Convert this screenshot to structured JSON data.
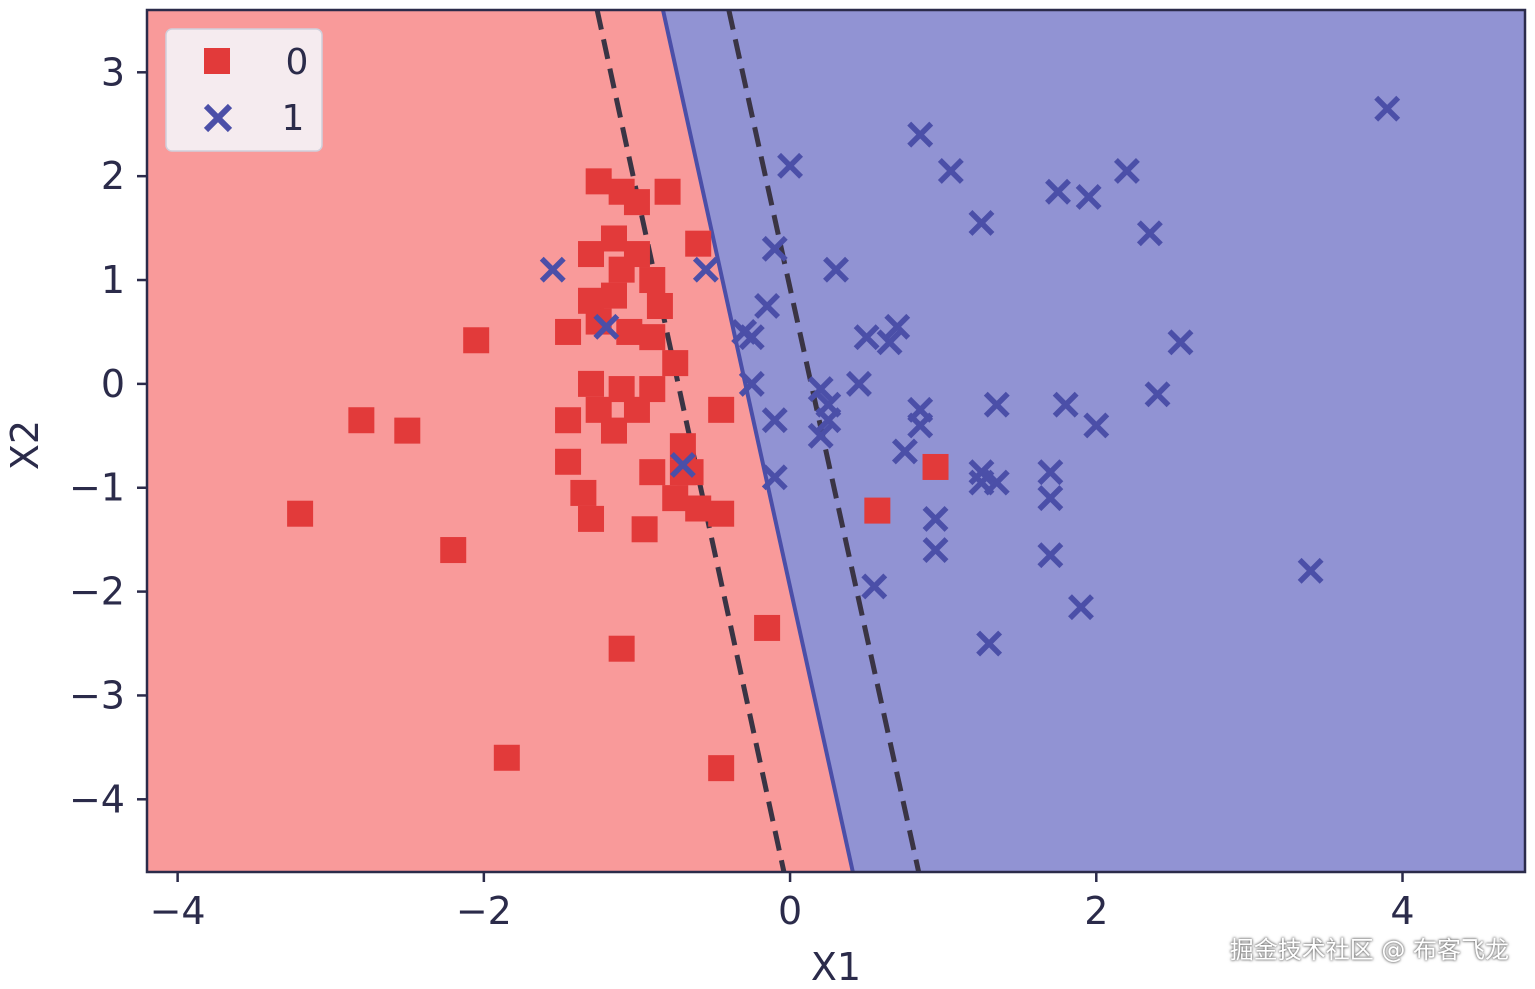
{
  "chart_data": {
    "type": "scatter",
    "title": "",
    "xlabel": "X1",
    "ylabel": "X2",
    "xlim": [
      -4.2,
      4.8
    ],
    "ylim": [
      -4.7,
      3.6
    ],
    "xticks": [
      -4,
      -2,
      0,
      2,
      4
    ],
    "yticks": [
      -4,
      -3,
      -2,
      -1,
      0,
      1,
      2,
      3
    ],
    "xtick_labels": [
      "−4",
      "−2",
      "0",
      "2",
      "4"
    ],
    "ytick_labels": [
      "−4",
      "−3",
      "−2",
      "−1",
      "0",
      "1",
      "2",
      "3"
    ],
    "legend": {
      "placement": "top-left",
      "entries": [
        "0",
        "1"
      ]
    },
    "grid": false,
    "colors": {
      "class0_region": "#f99a9a",
      "class1_region": "#9193d3",
      "class0_marker": "#e23a3a",
      "class1_marker": "#4b4fa8",
      "boundary": "#4b4fa8",
      "margin": "#3a3444",
      "frame": "#2b2b4a"
    },
    "decision_boundary": {
      "points": [
        [
          -0.83,
          3.6
        ],
        [
          0.41,
          -4.7
        ]
      ]
    },
    "margins": [
      {
        "points": [
          [
            -1.26,
            3.6
          ],
          [
            -0.04,
            -4.7
          ]
        ]
      },
      {
        "points": [
          [
            -0.4,
            3.6
          ],
          [
            0.84,
            -4.7
          ]
        ]
      }
    ],
    "series": [
      {
        "name": "0",
        "marker": "square",
        "points": [
          [
            -1.25,
            1.95
          ],
          [
            -1.1,
            1.85
          ],
          [
            -1.0,
            1.75
          ],
          [
            -0.8,
            1.85
          ],
          [
            -0.6,
            1.35
          ],
          [
            -1.3,
            1.25
          ],
          [
            -1.15,
            1.4
          ],
          [
            -1.0,
            1.25
          ],
          [
            -1.1,
            1.1
          ],
          [
            -0.9,
            1.0
          ],
          [
            -1.3,
            0.8
          ],
          [
            -1.15,
            0.85
          ],
          [
            -0.85,
            0.75
          ],
          [
            -1.25,
            0.6
          ],
          [
            -1.05,
            0.5
          ],
          [
            -0.9,
            0.45
          ],
          [
            -1.45,
            0.5
          ],
          [
            -2.05,
            0.42
          ],
          [
            -0.75,
            0.2
          ],
          [
            -1.3,
            0.0
          ],
          [
            -1.1,
            -0.05
          ],
          [
            -0.9,
            -0.05
          ],
          [
            -1.25,
            -0.25
          ],
          [
            -1.0,
            -0.25
          ],
          [
            -0.45,
            -0.25
          ],
          [
            -1.45,
            -0.35
          ],
          [
            -1.15,
            -0.45
          ],
          [
            -2.8,
            -0.35
          ],
          [
            -2.5,
            -0.45
          ],
          [
            -0.7,
            -0.6
          ],
          [
            -1.45,
            -0.75
          ],
          [
            -0.9,
            -0.85
          ],
          [
            -0.7,
            -0.85
          ],
          [
            -0.65,
            -0.85
          ],
          [
            -1.35,
            -1.05
          ],
          [
            -0.75,
            -1.1
          ],
          [
            -0.6,
            -1.2
          ],
          [
            -0.45,
            -1.25
          ],
          [
            -1.3,
            -1.3
          ],
          [
            -0.95,
            -1.4
          ],
          [
            -3.2,
            -1.25
          ],
          [
            -2.2,
            -1.6
          ],
          [
            -0.15,
            -2.35
          ],
          [
            -1.1,
            -2.55
          ],
          [
            -1.85,
            -3.6
          ],
          [
            -0.45,
            -3.7
          ],
          [
            0.95,
            -0.8
          ],
          [
            0.57,
            -1.22
          ]
        ]
      },
      {
        "name": "1",
        "marker": "x",
        "points": [
          [
            -1.55,
            1.1
          ],
          [
            -1.2,
            0.55
          ],
          [
            -0.7,
            -0.78
          ],
          [
            -0.55,
            1.1
          ],
          [
            0.0,
            2.1
          ],
          [
            -0.1,
            1.3
          ],
          [
            0.3,
            1.1
          ],
          [
            -0.15,
            0.75
          ],
          [
            -0.3,
            0.5
          ],
          [
            -0.25,
            0.45
          ],
          [
            -0.25,
            0.0
          ],
          [
            0.2,
            -0.05
          ],
          [
            0.45,
            0.0
          ],
          [
            -0.1,
            -0.35
          ],
          [
            0.25,
            -0.2
          ],
          [
            0.25,
            -0.35
          ],
          [
            0.2,
            -0.5
          ],
          [
            -0.1,
            -0.9
          ],
          [
            0.5,
            0.45
          ],
          [
            0.65,
            0.4
          ],
          [
            0.7,
            0.55
          ],
          [
            0.85,
            -0.25
          ],
          [
            0.85,
            -0.4
          ],
          [
            0.75,
            -0.65
          ],
          [
            0.85,
            2.4
          ],
          [
            1.05,
            2.05
          ],
          [
            1.25,
            1.55
          ],
          [
            1.75,
            1.85
          ],
          [
            1.95,
            1.8
          ],
          [
            2.2,
            2.05
          ],
          [
            2.35,
            1.45
          ],
          [
            3.9,
            2.65
          ],
          [
            1.35,
            -0.2
          ],
          [
            1.8,
            -0.2
          ],
          [
            2.0,
            -0.4
          ],
          [
            2.4,
            -0.1
          ],
          [
            2.55,
            0.4
          ],
          [
            1.25,
            -0.85
          ],
          [
            1.35,
            -0.95
          ],
          [
            1.25,
            -0.95
          ],
          [
            1.7,
            -0.85
          ],
          [
            1.7,
            -1.1
          ],
          [
            0.95,
            -1.3
          ],
          [
            0.95,
            -1.6
          ],
          [
            1.7,
            -1.65
          ],
          [
            0.55,
            -1.95
          ],
          [
            1.9,
            -2.15
          ],
          [
            1.3,
            -2.5
          ],
          [
            3.4,
            -1.8
          ]
        ]
      }
    ]
  },
  "watermark": "掘金技术社区 @ 布客飞龙"
}
